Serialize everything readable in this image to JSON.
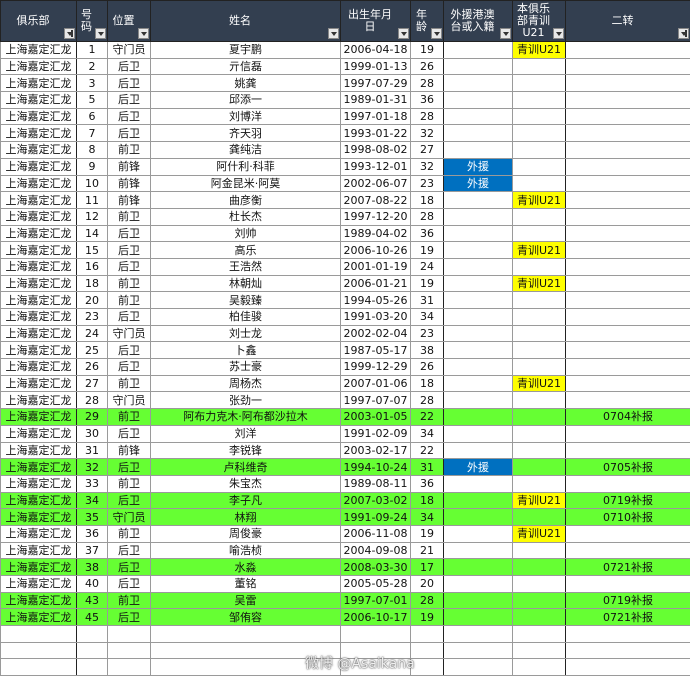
{
  "colors": {
    "header_bg": "#333f50",
    "highlight_green": "#66ff33",
    "foreign_blue": "#0070c0",
    "youth_yellow": "#ffff00"
  },
  "headers": [
    {
      "label": "俱乐部",
      "filter": "filter-active"
    },
    {
      "label": "号码",
      "filter": "dropdown"
    },
    {
      "label": "位置",
      "filter": "dropdown"
    },
    {
      "label": "姓名",
      "filter": "dropdown"
    },
    {
      "label": "出生年月日",
      "filter": "dropdown"
    },
    {
      "label": "年龄",
      "filter": "dropdown"
    },
    {
      "label": "外援港澳台或入籍",
      "filter": "dropdown"
    },
    {
      "label": "本俱乐部青训U21",
      "filter": "dropdown"
    },
    {
      "label": "二转",
      "filter": "filter-active"
    }
  ],
  "rows": [
    {
      "club": "上海嘉定汇龙",
      "num": "1",
      "pos": "守门员",
      "name": "夏宇鹏",
      "dob": "2006-04-18",
      "age": "19",
      "foreign": "",
      "u21": "青训U21",
      "transfer": "",
      "green": false
    },
    {
      "club": "上海嘉定汇龙",
      "num": "2",
      "pos": "后卫",
      "name": "亓信磊",
      "dob": "1999-01-13",
      "age": "26",
      "foreign": "",
      "u21": "",
      "transfer": "",
      "green": false
    },
    {
      "club": "上海嘉定汇龙",
      "num": "3",
      "pos": "后卫",
      "name": "姚龚",
      "dob": "1997-07-29",
      "age": "28",
      "foreign": "",
      "u21": "",
      "transfer": "",
      "green": false
    },
    {
      "club": "上海嘉定汇龙",
      "num": "5",
      "pos": "后卫",
      "name": "邱添一",
      "dob": "1989-01-31",
      "age": "36",
      "foreign": "",
      "u21": "",
      "transfer": "",
      "green": false
    },
    {
      "club": "上海嘉定汇龙",
      "num": "6",
      "pos": "后卫",
      "name": "刘博洋",
      "dob": "1997-01-18",
      "age": "28",
      "foreign": "",
      "u21": "",
      "transfer": "",
      "green": false
    },
    {
      "club": "上海嘉定汇龙",
      "num": "7",
      "pos": "后卫",
      "name": "齐天羽",
      "dob": "1993-01-22",
      "age": "32",
      "foreign": "",
      "u21": "",
      "transfer": "",
      "green": false
    },
    {
      "club": "上海嘉定汇龙",
      "num": "8",
      "pos": "前卫",
      "name": "龚纯洁",
      "dob": "1998-08-02",
      "age": "27",
      "foreign": "",
      "u21": "",
      "transfer": "",
      "green": false
    },
    {
      "club": "上海嘉定汇龙",
      "num": "9",
      "pos": "前锋",
      "name": "阿什利·科菲",
      "dob": "1993-12-01",
      "age": "32",
      "foreign": "外援",
      "u21": "",
      "transfer": "",
      "green": false
    },
    {
      "club": "上海嘉定汇龙",
      "num": "10",
      "pos": "前锋",
      "name": "阿金昆米·阿莫",
      "dob": "2002-06-07",
      "age": "23",
      "foreign": "外援",
      "u21": "",
      "transfer": "",
      "green": false
    },
    {
      "club": "上海嘉定汇龙",
      "num": "11",
      "pos": "前锋",
      "name": "曲彦衡",
      "dob": "2007-08-22",
      "age": "18",
      "foreign": "",
      "u21": "青训U21",
      "transfer": "",
      "green": false
    },
    {
      "club": "上海嘉定汇龙",
      "num": "12",
      "pos": "前卫",
      "name": "杜长杰",
      "dob": "1997-12-20",
      "age": "28",
      "foreign": "",
      "u21": "",
      "transfer": "",
      "green": false
    },
    {
      "club": "上海嘉定汇龙",
      "num": "14",
      "pos": "后卫",
      "name": "刘帅",
      "dob": "1989-04-02",
      "age": "36",
      "foreign": "",
      "u21": "",
      "transfer": "",
      "green": false
    },
    {
      "club": "上海嘉定汇龙",
      "num": "15",
      "pos": "后卫",
      "name": "高乐",
      "dob": "2006-10-26",
      "age": "19",
      "foreign": "",
      "u21": "青训U21",
      "transfer": "",
      "green": false
    },
    {
      "club": "上海嘉定汇龙",
      "num": "16",
      "pos": "后卫",
      "name": "王浩然",
      "dob": "2001-01-19",
      "age": "24",
      "foreign": "",
      "u21": "",
      "transfer": "",
      "green": false
    },
    {
      "club": "上海嘉定汇龙",
      "num": "18",
      "pos": "前卫",
      "name": "林朝灿",
      "dob": "2006-01-21",
      "age": "19",
      "foreign": "",
      "u21": "青训U21",
      "transfer": "",
      "green": false
    },
    {
      "club": "上海嘉定汇龙",
      "num": "20",
      "pos": "前卫",
      "name": "吴毅臻",
      "dob": "1994-05-26",
      "age": "31",
      "foreign": "",
      "u21": "",
      "transfer": "",
      "green": false
    },
    {
      "club": "上海嘉定汇龙",
      "num": "23",
      "pos": "后卫",
      "name": "柏佳骏",
      "dob": "1991-03-20",
      "age": "34",
      "foreign": "",
      "u21": "",
      "transfer": "",
      "green": false
    },
    {
      "club": "上海嘉定汇龙",
      "num": "24",
      "pos": "守门员",
      "name": "刘士龙",
      "dob": "2002-02-04",
      "age": "23",
      "foreign": "",
      "u21": "",
      "transfer": "",
      "green": false
    },
    {
      "club": "上海嘉定汇龙",
      "num": "25",
      "pos": "后卫",
      "name": "卜鑫",
      "dob": "1987-05-17",
      "age": "38",
      "foreign": "",
      "u21": "",
      "transfer": "",
      "green": false
    },
    {
      "club": "上海嘉定汇龙",
      "num": "26",
      "pos": "后卫",
      "name": "苏士豪",
      "dob": "1999-12-29",
      "age": "26",
      "foreign": "",
      "u21": "",
      "transfer": "",
      "green": false
    },
    {
      "club": "上海嘉定汇龙",
      "num": "27",
      "pos": "前卫",
      "name": "周杨杰",
      "dob": "2007-01-06",
      "age": "18",
      "foreign": "",
      "u21": "青训U21",
      "transfer": "",
      "green": false
    },
    {
      "club": "上海嘉定汇龙",
      "num": "28",
      "pos": "守门员",
      "name": "张劲一",
      "dob": "1997-07-07",
      "age": "28",
      "foreign": "",
      "u21": "",
      "transfer": "",
      "green": false
    },
    {
      "club": "上海嘉定汇龙",
      "num": "29",
      "pos": "前卫",
      "name": "阿布力克木·阿布都沙拉木",
      "dob": "2003-01-05",
      "age": "22",
      "foreign": "",
      "u21": "",
      "transfer": "0704补报",
      "green": true
    },
    {
      "club": "上海嘉定汇龙",
      "num": "30",
      "pos": "后卫",
      "name": "刘洋",
      "dob": "1991-02-09",
      "age": "34",
      "foreign": "",
      "u21": "",
      "transfer": "",
      "green": false
    },
    {
      "club": "上海嘉定汇龙",
      "num": "31",
      "pos": "前锋",
      "name": "李锐锋",
      "dob": "2003-02-17",
      "age": "22",
      "foreign": "",
      "u21": "",
      "transfer": "",
      "green": false
    },
    {
      "club": "上海嘉定汇龙",
      "num": "32",
      "pos": "后卫",
      "name": "卢科维奇",
      "dob": "1994-10-24",
      "age": "31",
      "foreign": "外援",
      "u21": "",
      "transfer": "0705补报",
      "green": true
    },
    {
      "club": "上海嘉定汇龙",
      "num": "33",
      "pos": "前卫",
      "name": "朱宝杰",
      "dob": "1989-08-11",
      "age": "36",
      "foreign": "",
      "u21": "",
      "transfer": "",
      "green": false
    },
    {
      "club": "上海嘉定汇龙",
      "num": "34",
      "pos": "后卫",
      "name": "李子凡",
      "dob": "2007-03-02",
      "age": "18",
      "foreign": "",
      "u21": "青训U21",
      "transfer": "0719补报",
      "green": true
    },
    {
      "club": "上海嘉定汇龙",
      "num": "35",
      "pos": "守门员",
      "name": "林翔",
      "dob": "1991-09-24",
      "age": "34",
      "foreign": "",
      "u21": "",
      "transfer": "0710补报",
      "green": true
    },
    {
      "club": "上海嘉定汇龙",
      "num": "36",
      "pos": "前卫",
      "name": "周俊豪",
      "dob": "2006-11-08",
      "age": "19",
      "foreign": "",
      "u21": "青训U21",
      "transfer": "",
      "green": false
    },
    {
      "club": "上海嘉定汇龙",
      "num": "37",
      "pos": "后卫",
      "name": "喻浩桢",
      "dob": "2004-09-08",
      "age": "21",
      "foreign": "",
      "u21": "",
      "transfer": "",
      "green": false
    },
    {
      "club": "上海嘉定汇龙",
      "num": "38",
      "pos": "后卫",
      "name": "水淼",
      "dob": "2008-03-30",
      "age": "17",
      "foreign": "",
      "u21": "",
      "transfer": "0721补报",
      "green": true
    },
    {
      "club": "上海嘉定汇龙",
      "num": "40",
      "pos": "后卫",
      "name": "董铭",
      "dob": "2005-05-28",
      "age": "20",
      "foreign": "",
      "u21": "",
      "transfer": "",
      "green": false
    },
    {
      "club": "上海嘉定汇龙",
      "num": "43",
      "pos": "前卫",
      "name": "吴雷",
      "dob": "1997-07-01",
      "age": "28",
      "foreign": "",
      "u21": "",
      "transfer": "0719补报",
      "green": true
    },
    {
      "club": "上海嘉定汇龙",
      "num": "45",
      "pos": "后卫",
      "name": "邹侑容",
      "dob": "2006-10-17",
      "age": "19",
      "foreign": "",
      "u21": "",
      "transfer": "0721补报",
      "green": true
    }
  ],
  "watermark": "微博 @Asaikana"
}
